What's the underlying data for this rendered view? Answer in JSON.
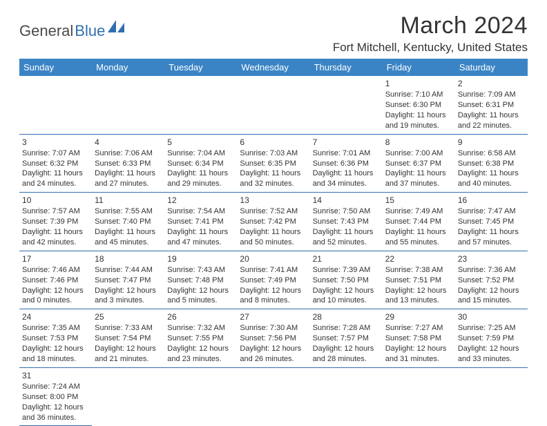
{
  "logo": {
    "part1": "General",
    "part2": "Blue"
  },
  "header": {
    "month_title": "March 2024",
    "location": "Fort Mitchell, Kentucky, United States"
  },
  "colors": {
    "header_bg": "#3a84c5",
    "header_text": "#ffffff",
    "border": "#2f6fb0",
    "text": "#333333",
    "logo_dark": "#4a4a4a",
    "logo_blue": "#2f6fb0"
  },
  "dayHeaders": [
    "Sunday",
    "Monday",
    "Tuesday",
    "Wednesday",
    "Thursday",
    "Friday",
    "Saturday"
  ],
  "weeks": [
    [
      null,
      null,
      null,
      null,
      null,
      {
        "n": "1",
        "sr": "Sunrise: 7:10 AM",
        "ss": "Sunset: 6:30 PM",
        "dl1": "Daylight: 11 hours",
        "dl2": "and 19 minutes."
      },
      {
        "n": "2",
        "sr": "Sunrise: 7:09 AM",
        "ss": "Sunset: 6:31 PM",
        "dl1": "Daylight: 11 hours",
        "dl2": "and 22 minutes."
      }
    ],
    [
      {
        "n": "3",
        "sr": "Sunrise: 7:07 AM",
        "ss": "Sunset: 6:32 PM",
        "dl1": "Daylight: 11 hours",
        "dl2": "and 24 minutes."
      },
      {
        "n": "4",
        "sr": "Sunrise: 7:06 AM",
        "ss": "Sunset: 6:33 PM",
        "dl1": "Daylight: 11 hours",
        "dl2": "and 27 minutes."
      },
      {
        "n": "5",
        "sr": "Sunrise: 7:04 AM",
        "ss": "Sunset: 6:34 PM",
        "dl1": "Daylight: 11 hours",
        "dl2": "and 29 minutes."
      },
      {
        "n": "6",
        "sr": "Sunrise: 7:03 AM",
        "ss": "Sunset: 6:35 PM",
        "dl1": "Daylight: 11 hours",
        "dl2": "and 32 minutes."
      },
      {
        "n": "7",
        "sr": "Sunrise: 7:01 AM",
        "ss": "Sunset: 6:36 PM",
        "dl1": "Daylight: 11 hours",
        "dl2": "and 34 minutes."
      },
      {
        "n": "8",
        "sr": "Sunrise: 7:00 AM",
        "ss": "Sunset: 6:37 PM",
        "dl1": "Daylight: 11 hours",
        "dl2": "and 37 minutes."
      },
      {
        "n": "9",
        "sr": "Sunrise: 6:58 AM",
        "ss": "Sunset: 6:38 PM",
        "dl1": "Daylight: 11 hours",
        "dl2": "and 40 minutes."
      }
    ],
    [
      {
        "n": "10",
        "sr": "Sunrise: 7:57 AM",
        "ss": "Sunset: 7:39 PM",
        "dl1": "Daylight: 11 hours",
        "dl2": "and 42 minutes."
      },
      {
        "n": "11",
        "sr": "Sunrise: 7:55 AM",
        "ss": "Sunset: 7:40 PM",
        "dl1": "Daylight: 11 hours",
        "dl2": "and 45 minutes."
      },
      {
        "n": "12",
        "sr": "Sunrise: 7:54 AM",
        "ss": "Sunset: 7:41 PM",
        "dl1": "Daylight: 11 hours",
        "dl2": "and 47 minutes."
      },
      {
        "n": "13",
        "sr": "Sunrise: 7:52 AM",
        "ss": "Sunset: 7:42 PM",
        "dl1": "Daylight: 11 hours",
        "dl2": "and 50 minutes."
      },
      {
        "n": "14",
        "sr": "Sunrise: 7:50 AM",
        "ss": "Sunset: 7:43 PM",
        "dl1": "Daylight: 11 hours",
        "dl2": "and 52 minutes."
      },
      {
        "n": "15",
        "sr": "Sunrise: 7:49 AM",
        "ss": "Sunset: 7:44 PM",
        "dl1": "Daylight: 11 hours",
        "dl2": "and 55 minutes."
      },
      {
        "n": "16",
        "sr": "Sunrise: 7:47 AM",
        "ss": "Sunset: 7:45 PM",
        "dl1": "Daylight: 11 hours",
        "dl2": "and 57 minutes."
      }
    ],
    [
      {
        "n": "17",
        "sr": "Sunrise: 7:46 AM",
        "ss": "Sunset: 7:46 PM",
        "dl1": "Daylight: 12 hours",
        "dl2": "and 0 minutes."
      },
      {
        "n": "18",
        "sr": "Sunrise: 7:44 AM",
        "ss": "Sunset: 7:47 PM",
        "dl1": "Daylight: 12 hours",
        "dl2": "and 3 minutes."
      },
      {
        "n": "19",
        "sr": "Sunrise: 7:43 AM",
        "ss": "Sunset: 7:48 PM",
        "dl1": "Daylight: 12 hours",
        "dl2": "and 5 minutes."
      },
      {
        "n": "20",
        "sr": "Sunrise: 7:41 AM",
        "ss": "Sunset: 7:49 PM",
        "dl1": "Daylight: 12 hours",
        "dl2": "and 8 minutes."
      },
      {
        "n": "21",
        "sr": "Sunrise: 7:39 AM",
        "ss": "Sunset: 7:50 PM",
        "dl1": "Daylight: 12 hours",
        "dl2": "and 10 minutes."
      },
      {
        "n": "22",
        "sr": "Sunrise: 7:38 AM",
        "ss": "Sunset: 7:51 PM",
        "dl1": "Daylight: 12 hours",
        "dl2": "and 13 minutes."
      },
      {
        "n": "23",
        "sr": "Sunrise: 7:36 AM",
        "ss": "Sunset: 7:52 PM",
        "dl1": "Daylight: 12 hours",
        "dl2": "and 15 minutes."
      }
    ],
    [
      {
        "n": "24",
        "sr": "Sunrise: 7:35 AM",
        "ss": "Sunset: 7:53 PM",
        "dl1": "Daylight: 12 hours",
        "dl2": "and 18 minutes."
      },
      {
        "n": "25",
        "sr": "Sunrise: 7:33 AM",
        "ss": "Sunset: 7:54 PM",
        "dl1": "Daylight: 12 hours",
        "dl2": "and 21 minutes."
      },
      {
        "n": "26",
        "sr": "Sunrise: 7:32 AM",
        "ss": "Sunset: 7:55 PM",
        "dl1": "Daylight: 12 hours",
        "dl2": "and 23 minutes."
      },
      {
        "n": "27",
        "sr": "Sunrise: 7:30 AM",
        "ss": "Sunset: 7:56 PM",
        "dl1": "Daylight: 12 hours",
        "dl2": "and 26 minutes."
      },
      {
        "n": "28",
        "sr": "Sunrise: 7:28 AM",
        "ss": "Sunset: 7:57 PM",
        "dl1": "Daylight: 12 hours",
        "dl2": "and 28 minutes."
      },
      {
        "n": "29",
        "sr": "Sunrise: 7:27 AM",
        "ss": "Sunset: 7:58 PM",
        "dl1": "Daylight: 12 hours",
        "dl2": "and 31 minutes."
      },
      {
        "n": "30",
        "sr": "Sunrise: 7:25 AM",
        "ss": "Sunset: 7:59 PM",
        "dl1": "Daylight: 12 hours",
        "dl2": "and 33 minutes."
      }
    ],
    [
      {
        "n": "31",
        "sr": "Sunrise: 7:24 AM",
        "ss": "Sunset: 8:00 PM",
        "dl1": "Daylight: 12 hours",
        "dl2": "and 36 minutes."
      },
      null,
      null,
      null,
      null,
      null,
      null
    ]
  ]
}
